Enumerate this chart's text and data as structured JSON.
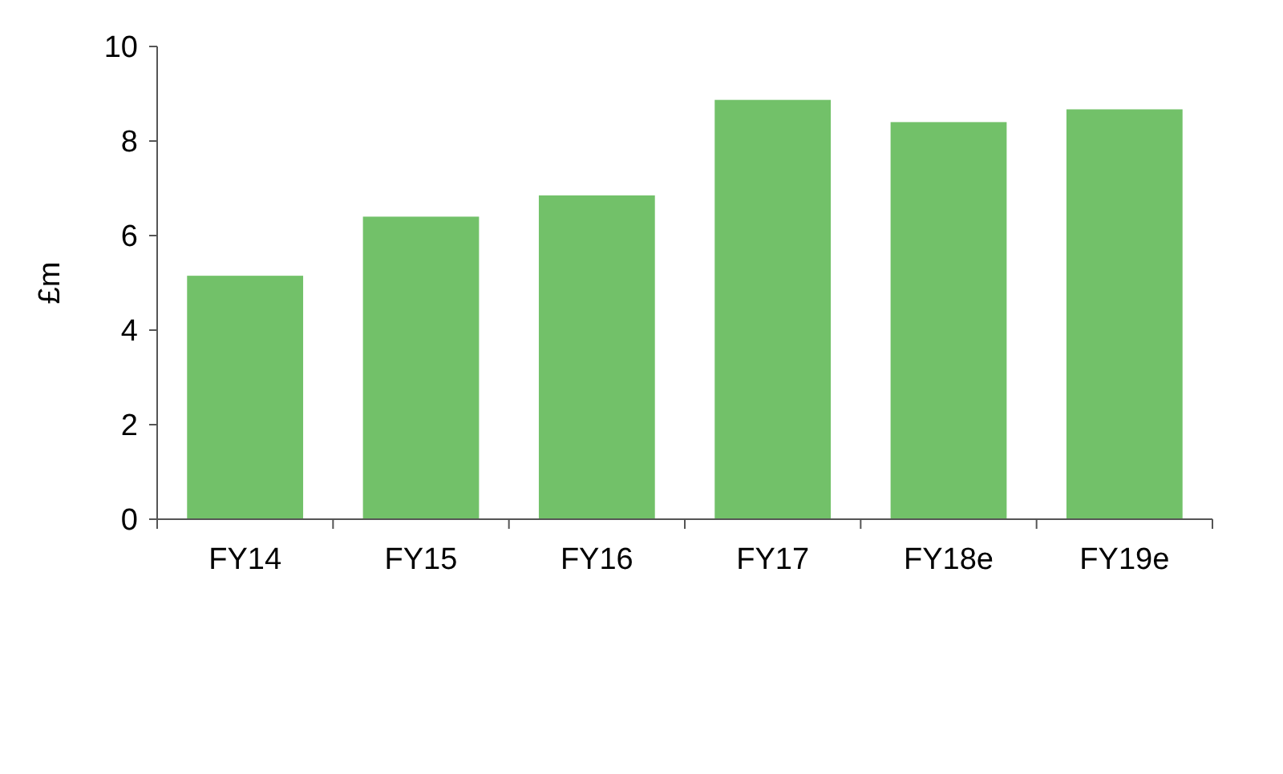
{
  "chart_data": {
    "type": "bar",
    "ylabel": "£m",
    "categories": [
      "FY14",
      "FY15",
      "FY16",
      "FY17",
      "FY18e",
      "FY19e"
    ],
    "values": [
      5.15,
      6.4,
      6.85,
      8.87,
      8.4,
      8.67
    ],
    "color": "#72c169",
    "ylim": [
      0,
      10
    ],
    "yticks": [
      0,
      2,
      4,
      6,
      8,
      10
    ],
    "grid": false
  }
}
